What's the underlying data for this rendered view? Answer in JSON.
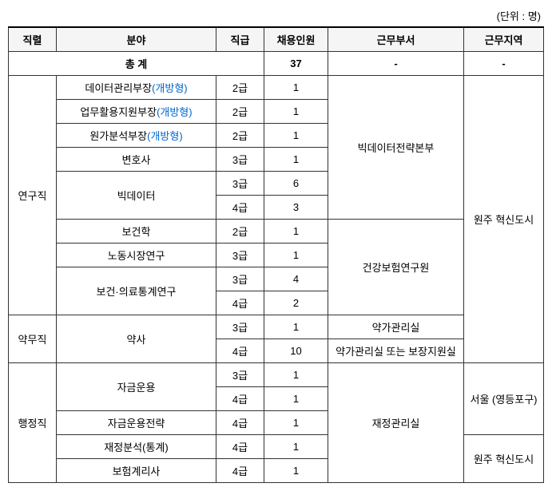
{
  "unit_label": "(단위 : 명)",
  "headers": {
    "job_category": "직렬",
    "field": "분야",
    "grade": "직급",
    "headcount": "채용인원",
    "department": "근무부서",
    "location": "근무지역"
  },
  "total": {
    "label": "총 계",
    "headcount": "37",
    "department": "-",
    "location": "-"
  },
  "categories": {
    "research": "연구직",
    "pharmacy": "약무직",
    "admin": "행정직"
  },
  "departments": {
    "bigdata_hq": "빅데이터전략본부",
    "health_research": "건강보험연구원",
    "pharma_mgmt": "약가관리실",
    "pharma_or_support": "약가관리실 또는 보장지원실",
    "finance_mgmt": "재정관리실"
  },
  "locations": {
    "wonju": "원주 혁신도시",
    "seoul": "서울 (영등포구)"
  },
  "open_suffix": "(개방형)",
  "rows": {
    "data_mgmt_head": {
      "field": "데이터관리부장",
      "grade": "2급",
      "count": "1"
    },
    "biz_support_head": {
      "field": "업무활용지원부장",
      "grade": "2급",
      "count": "1"
    },
    "cost_analysis_head": {
      "field": "원가분석부장",
      "grade": "2급",
      "count": "1"
    },
    "lawyer": {
      "field": "변호사",
      "grade": "3급",
      "count": "1"
    },
    "bigdata": {
      "field": "빅데이터",
      "grade3": "3급",
      "count3": "6",
      "grade4": "4급",
      "count4": "3"
    },
    "health_sci": {
      "field": "보건학",
      "grade": "2급",
      "count": "1"
    },
    "labor_market": {
      "field": "노동시장연구",
      "grade": "3급",
      "count": "1"
    },
    "health_stats": {
      "field": "보건·의료통계연구",
      "grade3": "3급",
      "count3": "4",
      "grade4": "4급",
      "count4": "2"
    },
    "pharmacist": {
      "field": "약사",
      "grade3": "3급",
      "count3": "1",
      "grade4": "4급",
      "count4": "10"
    },
    "fund_ops": {
      "field": "자금운용",
      "grade3": "3급",
      "count3": "1",
      "grade4": "4급",
      "count4": "1"
    },
    "fund_strategy": {
      "field": "자금운용전략",
      "grade": "4급",
      "count": "1"
    },
    "fin_analysis": {
      "field": "재정분석(통계)",
      "grade": "4급",
      "count": "1"
    },
    "actuary": {
      "field": "보험계리사",
      "grade": "4급",
      "count": "1"
    }
  }
}
